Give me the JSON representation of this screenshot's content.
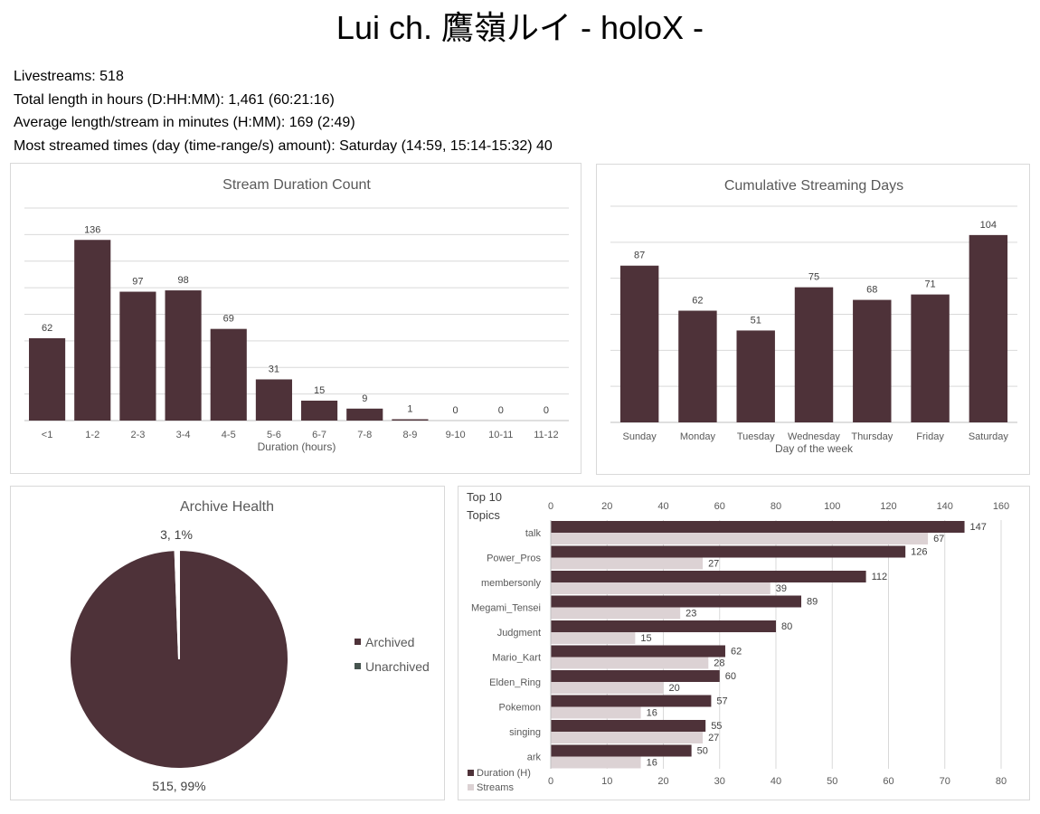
{
  "page_title": "Lui ch. 鷹嶺ルイ - holoX -",
  "stats": [
    "Livestreams: 518",
    "Total length in hours (D:HH:MM): 1,461 (60:21:16)",
    "Average length/stream in minutes (H:MM): 169 (2:49)",
    "Most streamed times (day (time-range/s) amount): Saturday (14:59, 15:14-15:32) 40"
  ],
  "colors": {
    "primary": "#4e3239",
    "secondary": "#dcd2d4",
    "white_slice": "#ffffff",
    "grid": "#d9d9d9"
  },
  "chart_data": [
    {
      "type": "bar",
      "title": "Stream Duration Count",
      "xlabel": "Duration (hours)",
      "ylabel": "",
      "categories": [
        "<1",
        "1-2",
        "2-3",
        "3-4",
        "4-5",
        "5-6",
        "6-7",
        "7-8",
        "8-9",
        "9-10",
        "10-11",
        "11-12"
      ],
      "values": [
        62,
        136,
        97,
        98,
        69,
        31,
        15,
        9,
        1,
        0,
        0,
        0
      ],
      "ylim": [
        0,
        160
      ],
      "grid": true
    },
    {
      "type": "bar",
      "title": "Cumulative Streaming Days",
      "xlabel": "Day of the week",
      "ylabel": "",
      "categories": [
        "Sunday",
        "Monday",
        "Tuesday",
        "Wednesday",
        "Thursday",
        "Friday",
        "Saturday"
      ],
      "values": [
        87,
        62,
        51,
        75,
        68,
        71,
        104
      ],
      "ylim": [
        0,
        120
      ],
      "grid": true
    },
    {
      "type": "pie",
      "title": "Archive Health",
      "labels": [
        "Archived",
        "Unarchived"
      ],
      "values": [
        515,
        3
      ],
      "data_labels": [
        "515, 99%",
        "3, 1%"
      ],
      "legend": "right"
    },
    {
      "type": "bar",
      "orientation": "horizontal",
      "title": "Top 10 Topics",
      "categories": [
        "talk",
        "Power_Pros",
        "membersonly",
        "Megami_Tensei",
        "Judgment",
        "Mario_Kart",
        "Elden_Ring",
        "Pokemon",
        "singing",
        "ark"
      ],
      "series": [
        {
          "name": "Duration (H)",
          "values": [
            147,
            126,
            112,
            89,
            80,
            62,
            60,
            57,
            55,
            50
          ],
          "axis": "top",
          "xlim": [
            0,
            160
          ],
          "ticks": [
            0,
            20,
            40,
            60,
            80,
            100,
            120,
            140,
            160
          ]
        },
        {
          "name": "Streams",
          "values": [
            67,
            27,
            39,
            23,
            15,
            28,
            20,
            16,
            27,
            16
          ],
          "axis": "bottom",
          "xlim": [
            0,
            80
          ],
          "ticks": [
            0,
            10,
            20,
            30,
            40,
            50,
            60,
            70,
            80
          ]
        }
      ],
      "legend": "bottom-left",
      "grid": true
    }
  ]
}
